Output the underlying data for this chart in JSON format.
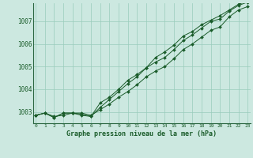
{
  "title": "Graphe pression niveau de la mer (hPa)",
  "background_color": "#cce8e0",
  "grid_color": "#99ccbb",
  "line_color": "#1a5c2a",
  "marker_color": "#1a5c2a",
  "x_labels": [
    "0",
    "1",
    "2",
    "3",
    "4",
    "5",
    "6",
    "7",
    "8",
    "9",
    "10",
    "11",
    "12",
    "13",
    "14",
    "15",
    "16",
    "17",
    "18",
    "19",
    "20",
    "21",
    "22",
    "23"
  ],
  "ylim": [
    1002.5,
    1007.8
  ],
  "yticks": [
    1003,
    1004,
    1005,
    1006,
    1007
  ],
  "series": [
    [
      1002.85,
      1002.95,
      1002.8,
      1002.85,
      1002.95,
      1002.95,
      1002.85,
      1003.1,
      1003.35,
      1003.65,
      1003.9,
      1004.2,
      1004.55,
      1004.8,
      1005.0,
      1005.35,
      1005.75,
      1006.0,
      1006.3,
      1006.6,
      1006.75,
      1007.2,
      1007.5,
      1007.65
    ],
    [
      1002.85,
      1002.95,
      1002.75,
      1002.95,
      1002.95,
      1002.9,
      1002.8,
      1003.2,
      1003.55,
      1003.9,
      1004.25,
      1004.55,
      1004.95,
      1005.2,
      1005.4,
      1005.75,
      1006.15,
      1006.4,
      1006.7,
      1007.0,
      1007.1,
      1007.45,
      1007.7,
      1007.85
    ],
    [
      1002.85,
      1002.95,
      1002.75,
      1002.95,
      1002.95,
      1002.85,
      1002.8,
      1003.4,
      1003.65,
      1004.0,
      1004.4,
      1004.65,
      1004.95,
      1005.4,
      1005.65,
      1005.95,
      1006.35,
      1006.55,
      1006.85,
      1007.05,
      1007.25,
      1007.5,
      1007.75,
      1007.9
    ]
  ]
}
